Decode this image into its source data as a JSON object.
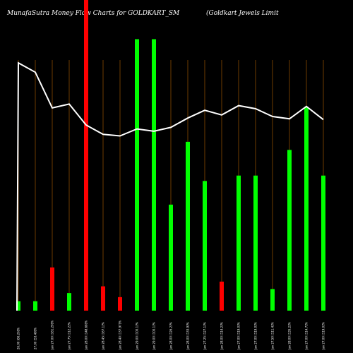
{
  "chart_data": {
    "type": "bar",
    "title": "MunafaSutra  Money Flow  Charts for GOLDKART_SM",
    "subtitle": "(Goldkart Jewels Limit",
    "categories": [
      "26.00 [66.26]%",
      "27.00 [53.48]%",
      "Jan 27.00 [161.29]%",
      "Jan 27.75 [112.2]%",
      "Jan 28.00 [148.68]%",
      "Jan 28.45 [167.1]%",
      "Jan 28.40 [137.97]%",
      "Jan 29.00 [100.1]%",
      "Jan 29.00 [100.1]%",
      "Jan 28.00 [126.2]%",
      "Jan 28.00 [133.9]%",
      "Jan 27.25 [127.1]%",
      "Jan 28.00 [114.2]%",
      "Jan 27.00 [119.0]%",
      "Jan 27.00 [119.0]%",
      "Jan 27.50 [111.4]%",
      "Jan 28.00 [135.2]%",
      "Jan 27.00 [114.7]%",
      "Jan 27.00 [119.0]%"
    ],
    "series": [
      {
        "values": [
          14,
          14,
          64,
          26,
          460,
          36,
          20,
          402,
          402,
          157,
          250,
          192,
          43,
          200,
          200,
          32,
          238,
          301,
          200
        ],
        "colors": [
          "#00ff00",
          "#00ff00",
          "#ff0000",
          "#00ff00",
          "#ff0000",
          "#ff0000",
          "#ff0000",
          "#00ff00",
          "#00ff00",
          "#00ff00",
          "#00ff00",
          "#00ff00",
          "#ff0000",
          "#00ff00",
          "#00ff00",
          "#00ff00",
          "#00ff00",
          "#00ff00",
          "#00ff00"
        ]
      },
      {
        "type": "line",
        "color": "#ffffff",
        "values": [
          31.9,
          30.7,
          26.1,
          26.6,
          23.9,
          22.7,
          22.5,
          23.4,
          23.1,
          23.6,
          24.8,
          25.8,
          25.2,
          26.4,
          26.0,
          25.0,
          24.7,
          26.3,
          24.6
        ]
      }
    ],
    "ylim": [
      0,
      460
    ],
    "line_ylim": [
      0,
      40
    ],
    "grid": true,
    "grid_color": "#8a4a00",
    "background": "#000000"
  }
}
